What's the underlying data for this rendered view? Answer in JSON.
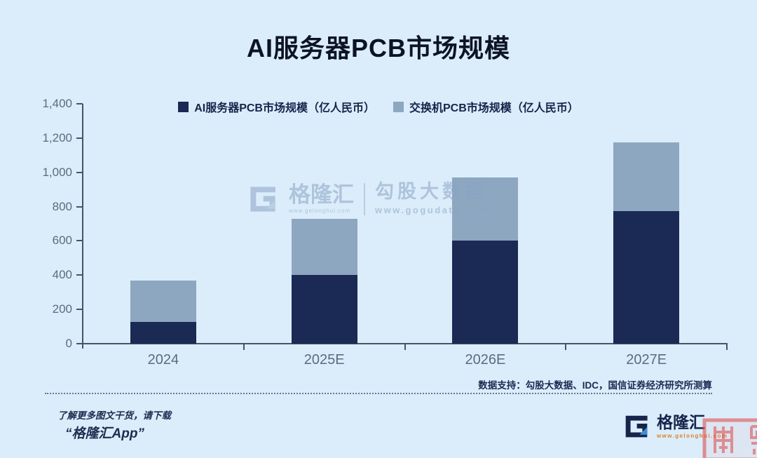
{
  "title": "AI服务器PCB市场规模",
  "chart_data": {
    "type": "bar",
    "stacked": true,
    "title": "AI服务器PCB市场规模",
    "categories": [
      "2024",
      "2025E",
      "2026E",
      "2027E"
    ],
    "series": [
      {
        "name": "AI服务器PCB市场规模（亿人民币）",
        "color": "#1a2a54",
        "values": [
          125,
          400,
          600,
          775
        ]
      },
      {
        "name": "交换机PCB市场规模（亿人民币）",
        "color": "#8ea7c0",
        "values": [
          245,
          330,
          370,
          400
        ]
      }
    ],
    "totals": [
      370,
      730,
      970,
      1175
    ],
    "ylim": [
      0,
      1400
    ],
    "ytick_step": 200,
    "yticks": [
      "0",
      "200",
      "400",
      "600",
      "800",
      "1,000",
      "1,200",
      "1,400"
    ],
    "legend_position": "top-center",
    "grid": false
  },
  "watermark_center": {
    "brand": "格隆汇",
    "brand_url": "www.gelonghui.com",
    "product": "勾股大数据",
    "product_url": "www.gogudata.com"
  },
  "footer": {
    "source_note": "数据支持：勾股大数据、IDC，国信证券经济研究所测算",
    "promo_line1": "了解更多图文干货，请下载",
    "promo_line2": "“格隆汇App”",
    "brand": "格隆汇",
    "brand_url": "www.gelonghui.com"
  },
  "colors": {
    "background": "#dbedfa",
    "axis": "#46546a",
    "tick_label": "#5d6b7c",
    "title_text": "#0c1424",
    "legend_text": "#16244c",
    "series_dark": "#1a2a54",
    "series_light": "#8ea7c0",
    "url_orange": "#e07f2e",
    "seal_red": "#dd4f4f",
    "watermark_blue": "#8aa3c4"
  }
}
